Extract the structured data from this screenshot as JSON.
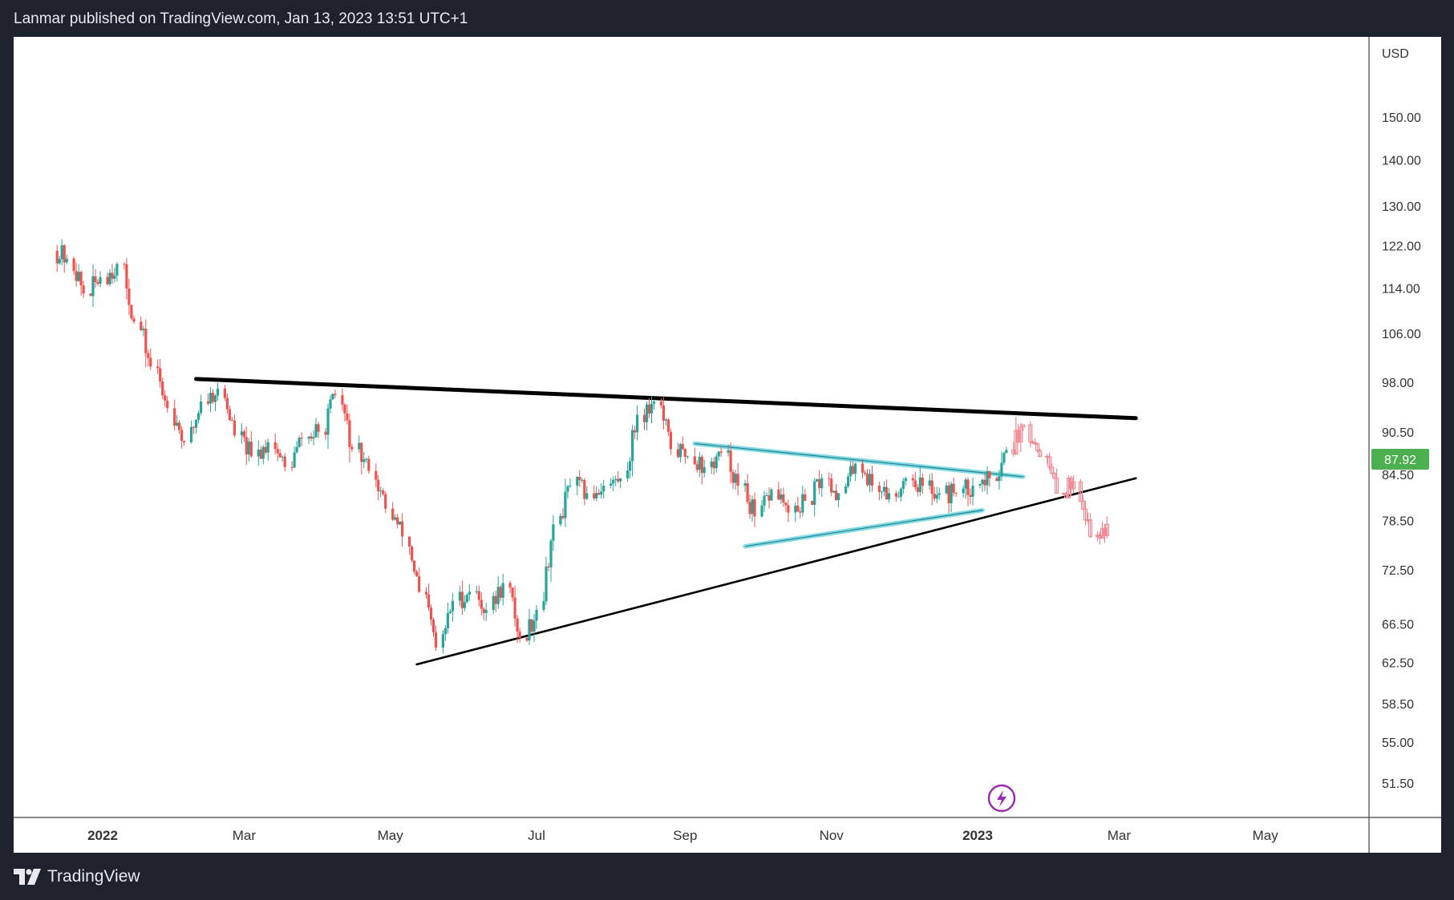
{
  "header": {
    "publisher_line": "Lanmar published on TradingView.com, Jan 13, 2023 13:51 UTC+1"
  },
  "footer": {
    "brand": "TradingView",
    "logo_icon": "tradingview-logo-icon"
  },
  "colors": {
    "up_candle": "#26a69a",
    "down_candle": "#ef5350",
    "projection": "#f28b95",
    "cyan_trendline": "#7fdce6",
    "trendline": "#000000",
    "price_badge": "#4caf50",
    "flash_icon": "#9c27b0"
  },
  "chart_data": {
    "type": "candlestick",
    "currency_label": "USD",
    "scale": "log",
    "y_ticks": [
      "150.00",
      "140.00",
      "130.00",
      "122.00",
      "114.00",
      "106.00",
      "98.00",
      "90.50",
      "84.50",
      "78.50",
      "72.50",
      "66.50",
      "62.50",
      "58.50",
      "55.00",
      "51.50"
    ],
    "x_ticks": [
      "2022",
      "Mar",
      "May",
      "Jul",
      "Sep",
      "Nov",
      "2023",
      "Mar",
      "May"
    ],
    "last_price": "87.92",
    "ohlc_anchor_closes": [
      [
        "2021-12-13",
        119.5
      ],
      [
        "2021-12-20",
        113
      ],
      [
        "2021-12-27",
        116
      ],
      [
        "2022-01-03",
        118.5
      ],
      [
        "2022-01-10",
        108
      ],
      [
        "2022-01-17",
        100.5
      ],
      [
        "2022-01-24",
        94
      ],
      [
        "2022-01-31",
        89
      ],
      [
        "2022-02-07",
        95
      ],
      [
        "2022-02-14",
        97
      ],
      [
        "2022-02-21",
        90
      ],
      [
        "2022-02-28",
        87
      ],
      [
        "2022-03-07",
        89
      ],
      [
        "2022-03-14",
        85.5
      ],
      [
        "2022-03-21",
        89.5
      ],
      [
        "2022-03-28",
        90.5
      ],
      [
        "2022-04-04",
        96
      ],
      [
        "2022-04-11",
        88
      ],
      [
        "2022-04-18",
        85
      ],
      [
        "2022-04-25",
        80
      ],
      [
        "2022-05-02",
        76.5
      ],
      [
        "2022-05-09",
        70
      ],
      [
        "2022-05-16",
        64
      ],
      [
        "2022-05-23",
        69
      ],
      [
        "2022-05-30",
        70
      ],
      [
        "2022-06-06",
        68
      ],
      [
        "2022-06-13",
        71
      ],
      [
        "2022-06-20",
        65
      ],
      [
        "2022-06-27",
        68
      ],
      [
        "2022-07-04",
        78
      ],
      [
        "2022-07-11",
        83
      ],
      [
        "2022-07-18",
        82
      ],
      [
        "2022-07-25",
        83
      ],
      [
        "2022-08-01",
        84
      ],
      [
        "2022-08-08",
        93
      ],
      [
        "2022-08-15",
        95
      ],
      [
        "2022-08-22",
        88
      ],
      [
        "2022-08-29",
        87
      ],
      [
        "2022-09-05",
        85.5
      ],
      [
        "2022-09-12",
        87.5
      ],
      [
        "2022-09-19",
        83
      ],
      [
        "2022-09-26",
        79
      ],
      [
        "2022-10-03",
        82.5
      ],
      [
        "2022-10-10",
        79.5
      ],
      [
        "2022-10-17",
        81
      ],
      [
        "2022-10-24",
        84
      ],
      [
        "2022-10-31",
        82
      ],
      [
        "2022-11-07",
        86
      ],
      [
        "2022-11-14",
        83
      ],
      [
        "2022-11-21",
        82
      ],
      [
        "2022-11-28",
        84
      ],
      [
        "2022-12-05",
        83
      ],
      [
        "2022-12-12",
        82
      ],
      [
        "2022-12-19",
        82
      ],
      [
        "2022-12-26",
        83
      ],
      [
        "2023-01-02",
        84
      ],
      [
        "2023-01-09",
        87.92
      ]
    ],
    "projection_closes": [
      [
        "2023-01-16",
        91.5
      ],
      [
        "2023-01-23",
        87
      ],
      [
        "2023-01-30",
        82
      ],
      [
        "2023-02-06",
        83.5
      ],
      [
        "2023-02-13",
        76.5
      ],
      [
        "2023-02-20",
        78
      ]
    ],
    "trendlines": [
      {
        "style": "black-thick",
        "from": [
          "2022-02-09",
          98.5
        ],
        "to": [
          "2023-03-08",
          92.5
        ]
      },
      {
        "style": "black",
        "from": [
          "2022-05-12",
          62.3
        ],
        "to": [
          "2023-03-08",
          84.0
        ]
      },
      {
        "style": "cyan",
        "from": [
          "2022-09-05",
          88.8
        ],
        "to": [
          "2023-01-20",
          84.2
        ]
      },
      {
        "style": "cyan",
        "from": [
          "2022-09-26",
          75.3
        ],
        "to": [
          "2023-01-03",
          79.8
        ]
      }
    ],
    "annotation_icon": "lightning-bolt-icon"
  }
}
